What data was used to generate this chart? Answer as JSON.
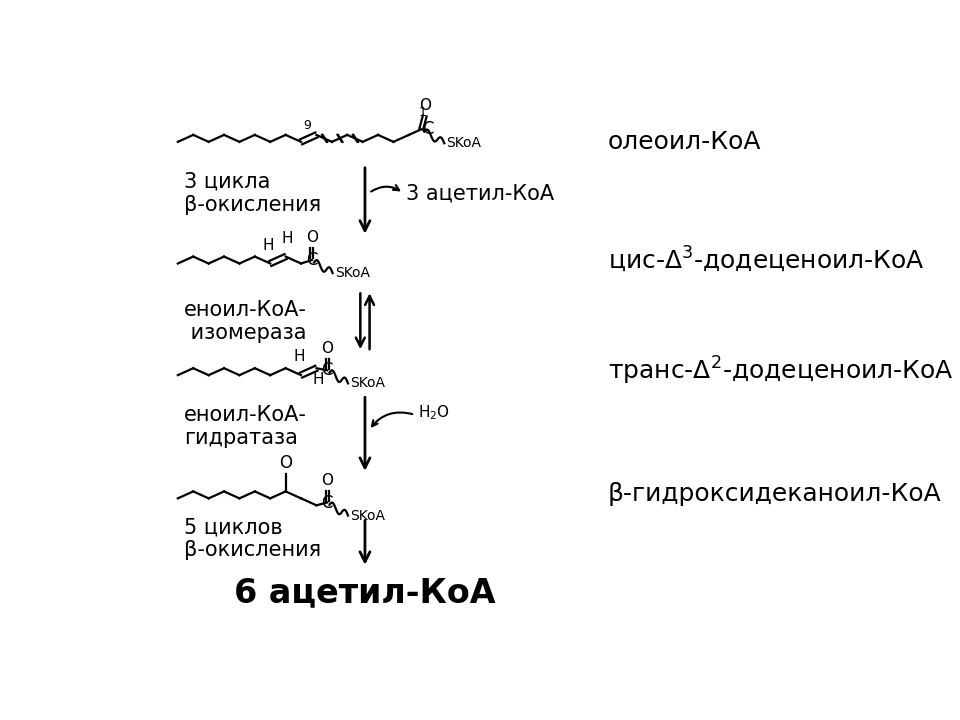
{
  "bg_color": "#ffffff",
  "labels": {
    "oleoil": "олеоил-КоА",
    "cis": "цис-Δ3-додеценоил-КоА",
    "trans": "транс-Δ2-додеценоил-КоА",
    "beta": "β-гидроксидеканоил-КоА",
    "cycles3": "3 цикла\nβ-окисления",
    "acetil3": "3 ацетил-КоА",
    "enoil_izom": "еноил-КоА-\n изомераза",
    "enoil_gidr": "еноил-КоА-\nгидратаза",
    "cycles5": "5 циклов\nβ-окисления",
    "acetil6": "6 ацетил-КоА"
  },
  "font_mol": 18,
  "font_label": 15,
  "font_small": 11,
  "font_acetil6": 24
}
